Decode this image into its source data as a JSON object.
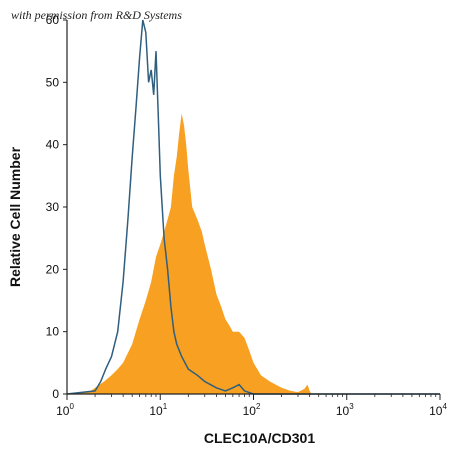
{
  "watermark": "with permission from R&D Systems",
  "chart_data": {
    "type": "area",
    "xlabel": "CLEC10A/CD301",
    "ylabel": "Relative Cell Number",
    "x_scale": "log",
    "xlim": [
      1,
      10000
    ],
    "ylim": [
      0,
      60
    ],
    "x_ticks": [
      {
        "value": 1,
        "base": "10",
        "exp": "0"
      },
      {
        "value": 10,
        "base": "10",
        "exp": "1"
      },
      {
        "value": 100,
        "base": "10",
        "exp": "2"
      },
      {
        "value": 1000,
        "base": "10",
        "exp": "3"
      },
      {
        "value": 10000,
        "base": "10",
        "exp": "4"
      }
    ],
    "y_ticks": [
      0,
      10,
      20,
      30,
      40,
      50,
      60
    ],
    "grid": false,
    "legend": "none",
    "series": [
      {
        "style": "outline",
        "color": "#2f5f7f",
        "x": [
          1.0,
          2.0,
          2.3,
          2.6,
          3.0,
          3.5,
          4.0,
          4.5,
          5.0,
          5.5,
          6.0,
          6.5,
          7.0,
          7.5,
          8.0,
          8.5,
          9.0,
          9.5,
          10.0,
          10.5,
          11.0,
          12.0,
          13.0,
          14.0,
          15.0,
          17.0,
          20.0,
          25.0,
          30.0,
          40.0,
          50.0,
          60.0,
          70.0,
          80.0,
          100.0,
          10000.0
        ],
        "y": [
          0,
          0.5,
          2,
          4,
          6,
          10,
          18,
          28,
          38,
          46,
          54,
          60,
          58,
          50,
          52,
          48,
          55,
          45,
          35,
          30,
          25,
          20,
          14,
          10,
          8,
          6,
          4,
          3,
          2,
          1,
          0.5,
          1,
          1.5,
          0.5,
          0,
          0
        ]
      },
      {
        "style": "filled",
        "color": "#f7a021",
        "x": [
          1.0,
          1.8,
          2.0,
          2.5,
          3.0,
          3.5,
          4.0,
          5.0,
          6.0,
          7.0,
          8.0,
          9.0,
          10.0,
          11.0,
          12.0,
          13.0,
          14.0,
          15.0,
          16.0,
          17.0,
          18.0,
          19.0,
          20.0,
          22.0,
          25.0,
          28.0,
          30.0,
          35.0,
          40.0,
          45.0,
          50.0,
          55.0,
          60.0,
          70.0,
          80.0,
          90.0,
          100.0,
          120.0,
          150.0,
          200.0,
          250.0,
          300.0,
          350.0,
          380.0,
          400.0,
          420.0,
          10000.0
        ],
        "y": [
          0,
          0.5,
          1,
          2,
          3,
          4,
          5,
          8,
          12,
          15,
          18,
          22,
          24,
          26,
          28,
          30,
          35,
          38,
          42,
          45,
          43,
          40,
          36,
          30,
          28,
          26,
          24,
          20,
          16,
          14,
          12,
          11,
          10,
          10,
          9,
          7,
          5,
          3,
          2,
          1,
          0.5,
          0.3,
          0.8,
          1.5,
          0.5,
          0,
          0
        ]
      }
    ]
  }
}
